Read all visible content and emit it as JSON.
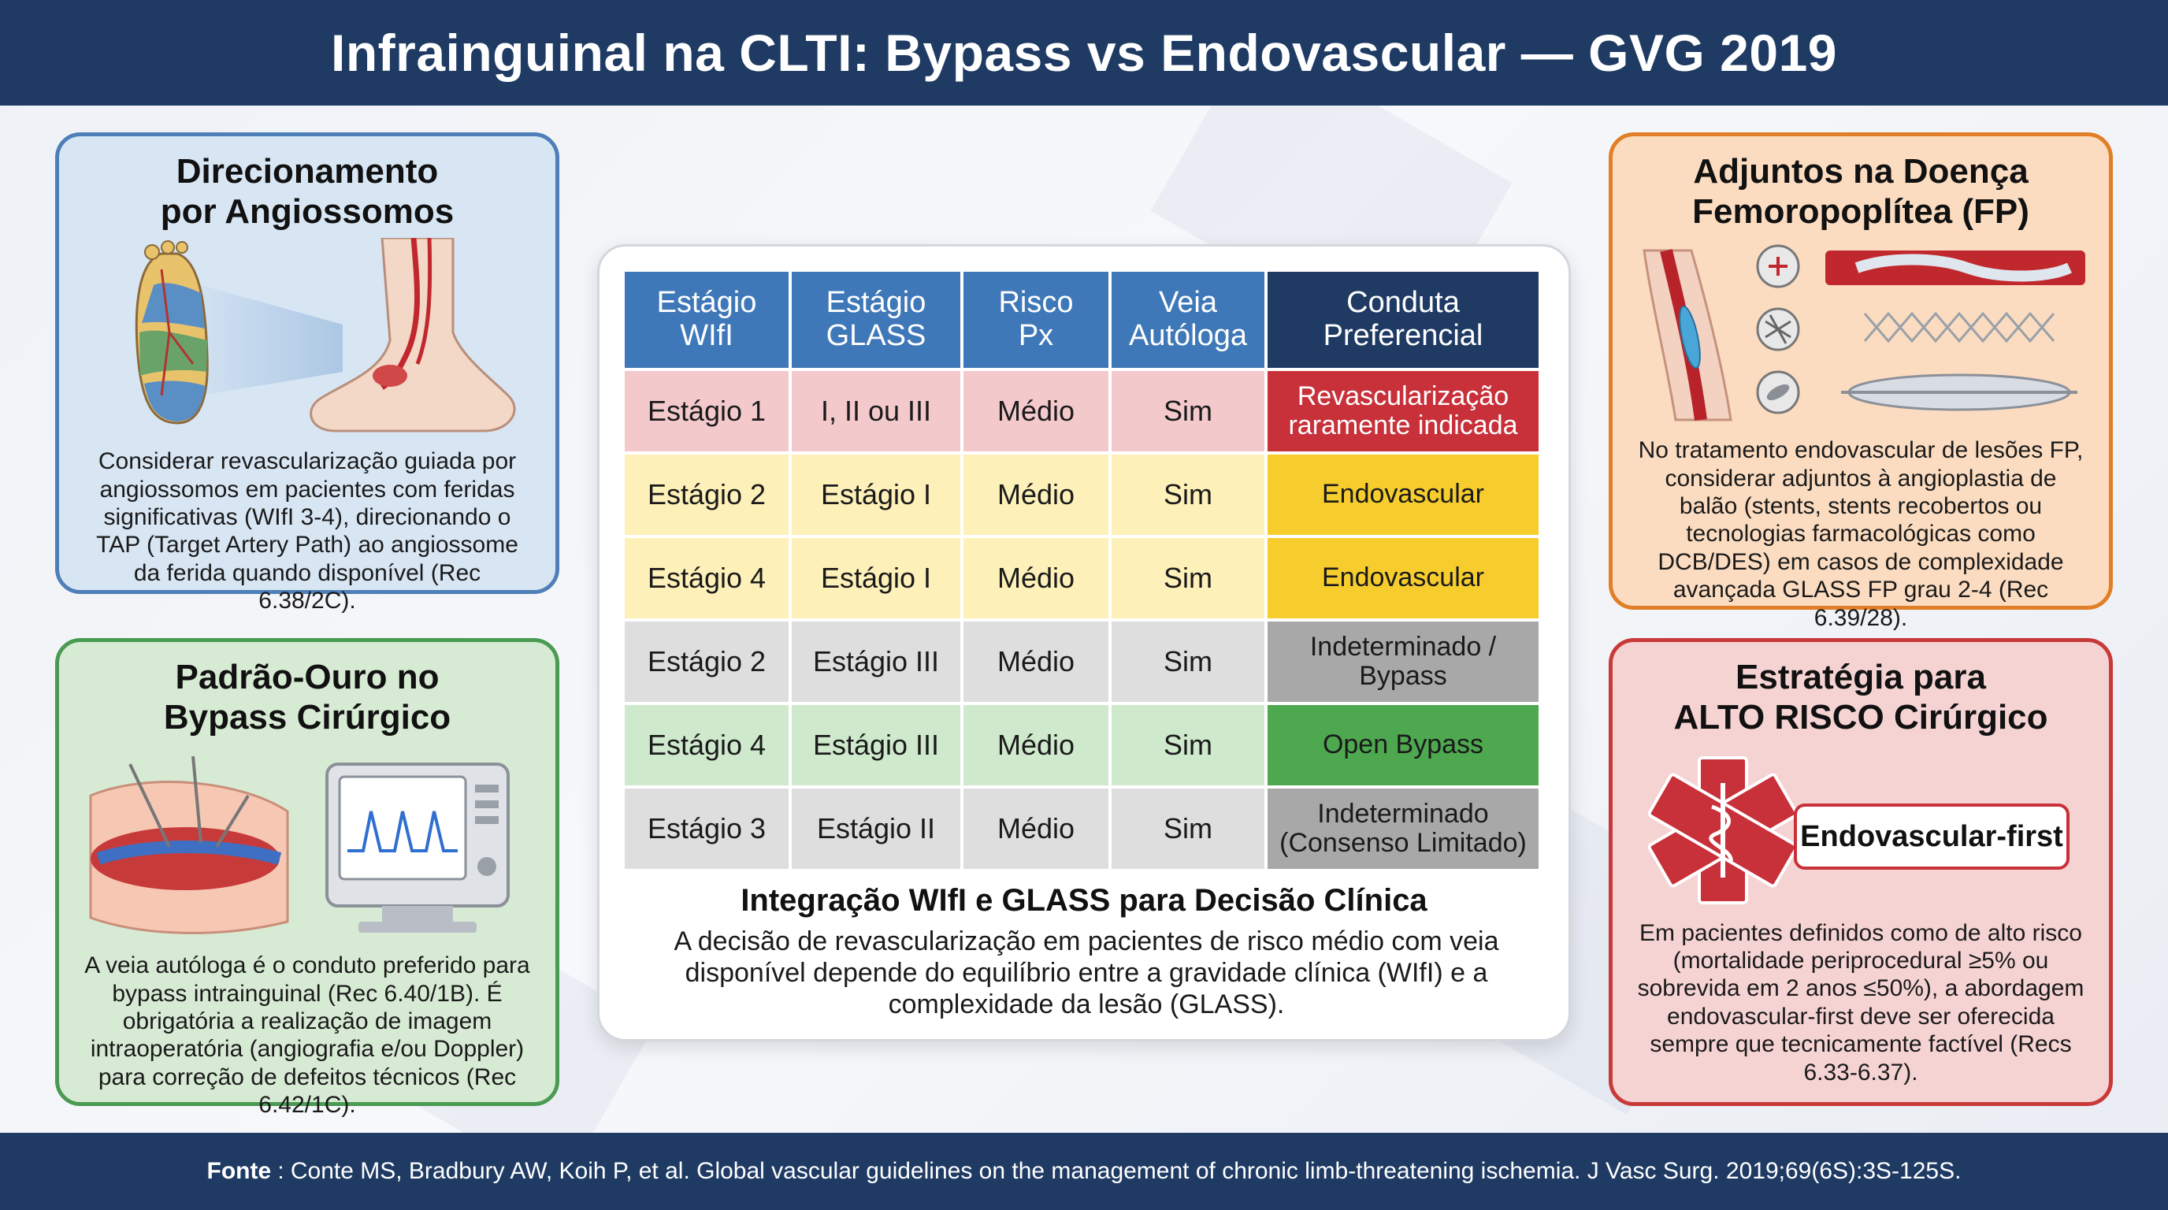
{
  "header": {
    "title": "Infrainguinal na CLTI: Bypass vs Endovascular — GVG 2019"
  },
  "panels": {
    "angiosome": {
      "title_line1": "Direcionamento",
      "title_line2": "por Angiossomos",
      "body": "Considerar revascularização guiada por angiossomos em pacientes com feridas significativas (WIfI 3-4), direcionando o TAP (Target Artery Path) ao angiossome da ferida quando disponível (Rec 6.38/2C)."
    },
    "gold": {
      "title_line1": "Padrão-Ouro no",
      "title_line2": "Bypass Cirúrgico",
      "body": "A veia autóloga é o conduto preferido para bypass intrainguinal (Rec 6.40/1B). É obrigatória a realização de imagem intraoperatória (angiografia e/ou Doppler) para correção de defeitos técnicos (Rec 6.42/1C)."
    },
    "adjuncts": {
      "title_line1": "Adjuntos na Doença",
      "title_line2": "Femoropoplítea (FP)",
      "body": "No tratamento endovascular de lesões FP, considerar adjuntos à angioplastia de balão (stents, stents recobertos ou tecnologias farmacológicas como DCB/DES) em casos de complexidade avançada GLASS FP grau 2-4 (Rec 6.39/28)."
    },
    "highrisk": {
      "title_line1": "Estratégia para",
      "title_line2": "ALTO RISCO Cirúrgico",
      "badge": "Endovascular-first",
      "body": "Em pacientes definidos como de alto risco (mortalidade periprocedural ≥5% ou sobrevida em 2 anos ≤50%), a abordagem endovascular-first deve ser oferecida sempre que tecnicamente factível (Recs 6.33-6.37)."
    }
  },
  "table": {
    "headers": [
      [
        "Estágio",
        "WIfI"
      ],
      [
        "Estágio",
        "GLASS"
      ],
      [
        "Risco",
        "Px"
      ],
      [
        "Veia",
        "Autóloga"
      ],
      [
        "Conduta",
        "Preferencial"
      ]
    ],
    "rows": [
      {
        "wifi": "Estágio 1",
        "glass": "I, II ou III",
        "risco": "Médio",
        "veia": "Sim",
        "conduta": [
          "Revascularização",
          "raramente indicada"
        ]
      },
      {
        "wifi": "Estágio 2",
        "glass": "Estágio I",
        "risco": "Médio",
        "veia": "Sim",
        "conduta": [
          "Endovascular"
        ]
      },
      {
        "wifi": "Estágio 4",
        "glass": "Estágio I",
        "risco": "Médio",
        "veia": "Sim",
        "conduta": [
          "Endovascular"
        ]
      },
      {
        "wifi": "Estágio 2",
        "glass": "Estágio III",
        "risco": "Médio",
        "veia": "Sim",
        "conduta": [
          "Indeterminado /",
          "Bypass"
        ]
      },
      {
        "wifi": "Estágio 4",
        "glass": "Estágio III",
        "risco": "Médio",
        "veia": "Sim",
        "conduta": [
          "Open Bypass"
        ]
      },
      {
        "wifi": "Estágio 3",
        "glass": "Estágio II",
        "risco": "Médio",
        "veia": "Sim",
        "conduta": [
          "Indeterminado",
          "(Consenso Limitado)"
        ]
      }
    ]
  },
  "integration": {
    "title": "Integração WIfI e GLASS para Decisão Clínica",
    "body": "A decisão de revascularização em pacientes de risco médio com veia disponível depende do equilíbrio entre a gravidade clínica (WIfI) e a complexidade da lesão (GLASS)."
  },
  "footer": {
    "label": "Fonte",
    "text": ": Conte MS, Bradbury AW, Koih P, et al. Global vascular guidelines on the management of chronic limb-threatening ischemia. J Vasc Surg. 2019;69(6S):3S-125S."
  },
  "colors": {
    "header_bg": "#1f3b64",
    "table_header": "#3f78b8",
    "conduta_red": "#c8303a",
    "conduta_yellow": "#f7cd2e",
    "conduta_gray": "#a8a8a8",
    "conduta_green": "#4ea84f"
  },
  "icons": [
    "foot-angiosome-icon",
    "surgical-incision-icon",
    "doppler-monitor-icon",
    "stent-balloon-icon",
    "star-of-life-icon"
  ]
}
